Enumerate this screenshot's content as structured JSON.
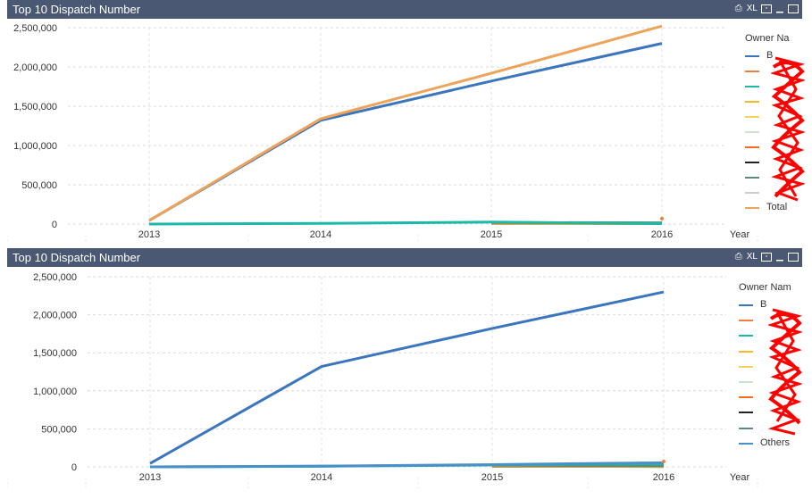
{
  "panels": [
    {
      "title": "Top 10 Dispatch Number",
      "toolbar": {
        "xl_label": "XL"
      },
      "legend": {
        "title": "Owner Na",
        "items": [
          {
            "label": "B",
            "color": "#3b75bd"
          },
          {
            "label": "",
            "color": "#f07f3c"
          },
          {
            "label": "",
            "color": "#1ab9a8"
          },
          {
            "label": "",
            "color": "#f2b92f"
          },
          {
            "label": "",
            "color": "#f7d25c"
          },
          {
            "label": "",
            "color": "#cfe2d0"
          },
          {
            "label": "",
            "color": "#f26c21"
          },
          {
            "label": "",
            "color": "#222222"
          },
          {
            "label": "",
            "color": "#5f8a78"
          },
          {
            "label": "",
            "color": "#cccccc"
          },
          {
            "label": "Total",
            "color": "#eda35a"
          }
        ]
      }
    },
    {
      "title": "Top 10 Dispatch Number",
      "toolbar": {
        "xl_label": "XL"
      },
      "legend": {
        "title": "Owner Nam",
        "items": [
          {
            "label": "B",
            "color": "#3b75bd"
          },
          {
            "label": "",
            "color": "#f07f3c"
          },
          {
            "label": "",
            "color": "#1ab9a8"
          },
          {
            "label": "",
            "color": "#f2b92f"
          },
          {
            "label": "",
            "color": "#f7d25c"
          },
          {
            "label": "",
            "color": "#cfe2d0"
          },
          {
            "label": "",
            "color": "#f26c21"
          },
          {
            "label": "",
            "color": "#222222"
          },
          {
            "label": "",
            "color": "#5f8a78"
          },
          {
            "label": "Others",
            "color": "#4a90c8"
          }
        ]
      }
    }
  ],
  "chart_data": [
    {
      "type": "line",
      "title": "Top 10 Dispatch Number",
      "xlabel": "Year",
      "ylabel": "",
      "categories": [
        "2013",
        "2014",
        "2015",
        "2016"
      ],
      "ylim": [
        0,
        2500000
      ],
      "yticks": [
        "0",
        "500,000",
        "1,000,000",
        "1,500,000",
        "2,000,000",
        "2,500,000"
      ],
      "grid": true,
      "legend_position": "right",
      "series": [
        {
          "name": "B",
          "color": "#3b75bd",
          "values": [
            45000,
            1320000,
            1820000,
            2300000
          ]
        },
        {
          "color": "#f07f3c",
          "values": [
            null,
            null,
            null,
            70000
          ]
        },
        {
          "color": "#1ab9a8",
          "values": [
            0,
            8000,
            25000,
            5000
          ]
        },
        {
          "color": "#f2b92f",
          "values": [
            null,
            null,
            15000,
            5000
          ]
        },
        {
          "color": "#f7d25c",
          "values": [
            null,
            null,
            10000,
            5000
          ]
        },
        {
          "color": "#cfe2d0",
          "values": [
            null,
            null,
            10000,
            5000
          ]
        },
        {
          "color": "#f26c21",
          "values": [
            null,
            null,
            10000,
            5000
          ]
        },
        {
          "color": "#222222",
          "values": [
            null,
            null,
            8000,
            5000
          ]
        },
        {
          "color": "#5f8a78",
          "values": [
            null,
            null,
            20000,
            15000
          ]
        },
        {
          "color": "#cccccc",
          "values": [
            null,
            null,
            8000,
            5000
          ]
        },
        {
          "name": "Total",
          "color": "#eda35a",
          "values": [
            45000,
            1340000,
            1920000,
            2520000
          ]
        }
      ]
    },
    {
      "type": "line",
      "title": "Top 10 Dispatch Number",
      "xlabel": "Year",
      "ylabel": "",
      "categories": [
        "2013",
        "2014",
        "2015",
        "2016"
      ],
      "ylim": [
        0,
        2500000
      ],
      "yticks": [
        "0",
        "500,000",
        "1,000,000",
        "1,500,000",
        "2,000,000",
        "2,500,000"
      ],
      "grid": true,
      "legend_position": "right",
      "series": [
        {
          "name": "B",
          "color": "#3b75bd",
          "values": [
            45000,
            1320000,
            1820000,
            2300000
          ]
        },
        {
          "color": "#f07f3c",
          "values": [
            null,
            null,
            null,
            70000
          ]
        },
        {
          "color": "#1ab9a8",
          "values": [
            0,
            8000,
            25000,
            40000
          ]
        },
        {
          "color": "#f2b92f",
          "values": [
            null,
            null,
            15000,
            10000
          ]
        },
        {
          "color": "#f7d25c",
          "values": [
            null,
            null,
            10000,
            8000
          ]
        },
        {
          "color": "#cfe2d0",
          "values": [
            null,
            null,
            10000,
            8000
          ]
        },
        {
          "color": "#f26c21",
          "values": [
            null,
            null,
            10000,
            8000
          ]
        },
        {
          "color": "#222222",
          "values": [
            null,
            null,
            8000,
            5000
          ]
        },
        {
          "color": "#5f8a78",
          "values": [
            null,
            null,
            20000,
            15000
          ]
        },
        {
          "name": "Others",
          "color": "#4a90c8",
          "values": [
            0,
            10000,
            30000,
            55000
          ]
        }
      ]
    }
  ]
}
